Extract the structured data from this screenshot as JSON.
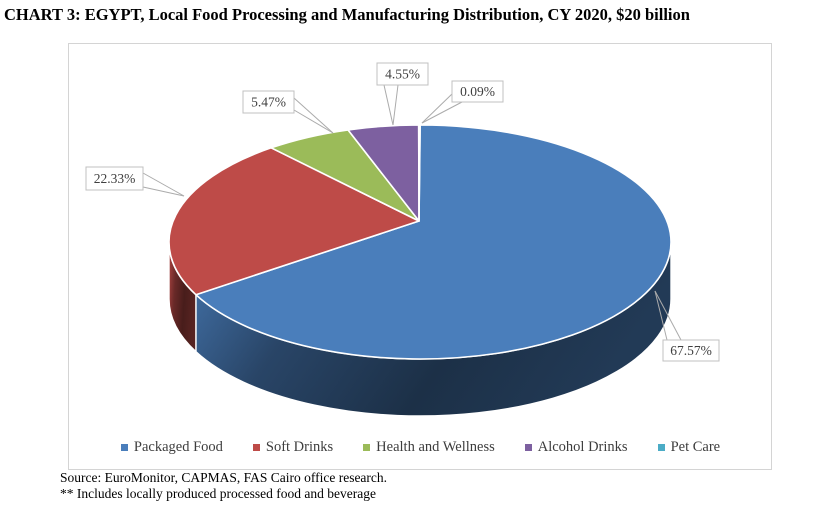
{
  "title": "CHART 3: EGYPT, Local Food Processing and Manufacturing Distribution, CY 2020, $20 billion",
  "chart_data": {
    "type": "pie",
    "style": "3d",
    "title": "EGYPT, Local Food Processing and Manufacturing Distribution, CY 2020",
    "total": "$20 billion",
    "categories": [
      "Packaged Food",
      "Soft Drinks",
      "Health and Wellness",
      "Alcohol Drinks",
      "Pet Care"
    ],
    "values": [
      67.57,
      22.33,
      5.47,
      4.55,
      0.09
    ],
    "value_labels": [
      "67.57%",
      "22.33%",
      "5.47%",
      "4.55%",
      "0.09%"
    ],
    "colors": [
      "#4A7EBB",
      "#BE4B48",
      "#9BBB59",
      "#7D60A0",
      "#4BACC6"
    ],
    "start_angle_deg": 0,
    "direction": "clockwise",
    "legend_position": "bottom",
    "label_style": "percent-callout-boxes",
    "callout_line_color": "#ababab",
    "callout_border_color": "#c0c0c0",
    "callout_text_color": "#3f3f3f"
  },
  "source": {
    "line1": "Source: EuroMonitor, CAPMAS, FAS Cairo office research.",
    "line2": "** Includes locally produced processed food and beverage"
  }
}
